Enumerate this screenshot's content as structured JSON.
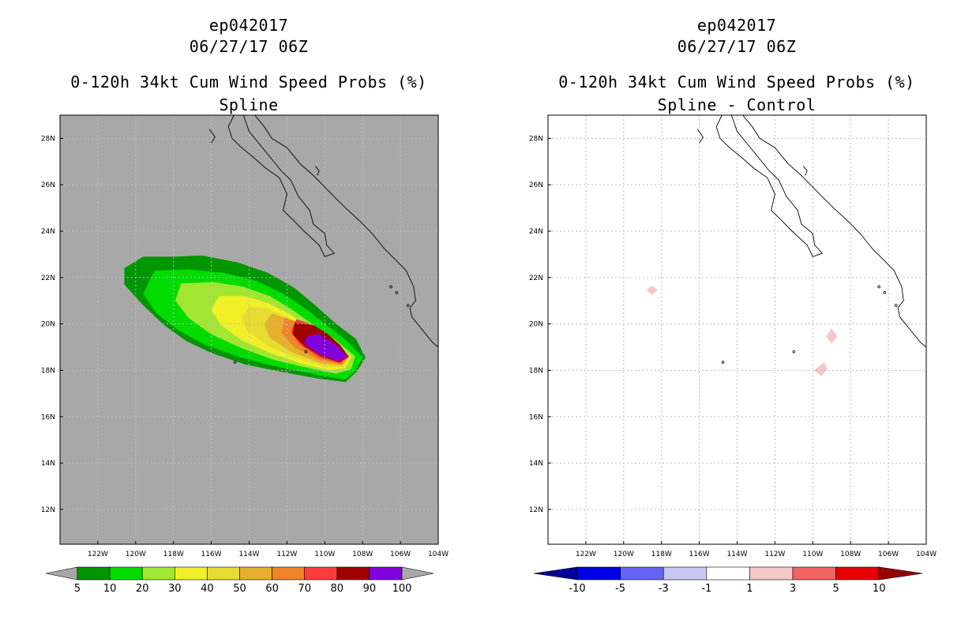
{
  "chart_data": [
    {
      "type": "heatmap",
      "storm_id": "ep042017",
      "datetime": "06/27/17 06Z",
      "title": "0-120h 34kt Cum Wind Speed Probs (%)",
      "subtitle": "Spline",
      "background_color": "#a8a8a8",
      "xlim": [
        -124,
        -104
      ],
      "ylim": [
        10.5,
        29
      ],
      "x_ticks": [
        -122,
        -120,
        -118,
        -116,
        -114,
        -112,
        -110,
        -108,
        -106,
        -104
      ],
      "x_tick_labels": [
        "122W",
        "120W",
        "118W",
        "116W",
        "114W",
        "112W",
        "110W",
        "108W",
        "106W",
        "104W"
      ],
      "y_ticks": [
        12,
        14,
        16,
        18,
        20,
        22,
        24,
        26,
        28
      ],
      "y_tick_labels": [
        "12N",
        "14N",
        "16N",
        "18N",
        "20N",
        "22N",
        "24N",
        "26N",
        "28N"
      ],
      "grid": true,
      "colorbar": {
        "labels": [
          "5",
          "10",
          "20",
          "30",
          "40",
          "50",
          "60",
          "70",
          "80",
          "90",
          "100"
        ],
        "colors": [
          "#009600",
          "#00dc00",
          "#a0e632",
          "#f0f028",
          "#e6dc32",
          "#e6af2d",
          "#f08228",
          "#fa3c3c",
          "#a00000",
          "#8200dc"
        ],
        "extend_colors": [
          "#a8a8a8",
          "#a8a8a8"
        ]
      },
      "contours": [
        {
          "level": 5,
          "color": "#009600",
          "points": [
            [
              -119.6,
              22.9
            ],
            [
              -117.9,
              22.9
            ],
            [
              -116.5,
              22.95
            ],
            [
              -114.6,
              22.65
            ],
            [
              -113.0,
              22.2
            ],
            [
              -111.6,
              21.55
            ],
            [
              -110.5,
              20.8
            ],
            [
              -109.4,
              20.0
            ],
            [
              -108.35,
              19.35
            ],
            [
              -107.85,
              18.55
            ],
            [
              -108.3,
              17.95
            ],
            [
              -108.9,
              17.5
            ],
            [
              -110.4,
              17.65
            ],
            [
              -112.4,
              17.95
            ],
            [
              -114.2,
              18.25
            ],
            [
              -116.0,
              18.75
            ],
            [
              -117.3,
              19.25
            ],
            [
              -118.5,
              19.95
            ],
            [
              -119.6,
              20.8
            ],
            [
              -120.6,
              21.7
            ],
            [
              -120.6,
              22.4
            ]
          ]
        },
        {
          "level": 10,
          "color": "#00dc00",
          "points": [
            [
              -119.0,
              22.3
            ],
            [
              -117.2,
              22.35
            ],
            [
              -115.3,
              22.2
            ],
            [
              -113.6,
              21.85
            ],
            [
              -112.2,
              21.3
            ],
            [
              -111.0,
              20.65
            ],
            [
              -109.9,
              19.95
            ],
            [
              -108.8,
              19.25
            ],
            [
              -108.0,
              18.55
            ],
            [
              -108.4,
              17.95
            ],
            [
              -108.9,
              17.6
            ],
            [
              -110.4,
              17.8
            ],
            [
              -112.5,
              18.15
            ],
            [
              -114.4,
              18.55
            ],
            [
              -116.3,
              19.1
            ],
            [
              -117.7,
              19.7
            ],
            [
              -118.9,
              20.45
            ],
            [
              -119.6,
              21.3
            ]
          ]
        },
        {
          "level": 20,
          "color": "#a0e632",
          "points": [
            [
              -117.6,
              21.75
            ],
            [
              -115.8,
              21.8
            ],
            [
              -114.3,
              21.6
            ],
            [
              -112.9,
              21.2
            ],
            [
              -111.7,
              20.6
            ],
            [
              -110.6,
              19.95
            ],
            [
              -109.4,
              19.3
            ],
            [
              -108.4,
              18.6
            ],
            [
              -108.6,
              18.05
            ],
            [
              -109.4,
              17.85
            ],
            [
              -110.9,
              18.1
            ],
            [
              -112.7,
              18.45
            ],
            [
              -114.4,
              18.95
            ],
            [
              -116.0,
              19.55
            ],
            [
              -117.2,
              20.25
            ],
            [
              -117.9,
              21.0
            ]
          ]
        },
        {
          "level": 30,
          "color": "#f0f028",
          "points": [
            [
              -115.6,
              21.2
            ],
            [
              -114.2,
              21.2
            ],
            [
              -113.0,
              20.9
            ],
            [
              -111.9,
              20.45
            ],
            [
              -110.9,
              19.9
            ],
            [
              -109.7,
              19.25
            ],
            [
              -108.6,
              18.6
            ],
            [
              -108.9,
              18.1
            ],
            [
              -109.8,
              18.0
            ],
            [
              -111.3,
              18.3
            ],
            [
              -112.9,
              18.75
            ],
            [
              -114.4,
              19.3
            ],
            [
              -115.5,
              19.95
            ],
            [
              -116.0,
              20.6
            ]
          ]
        },
        {
          "level": 40,
          "color": "#e6dc32",
          "points": [
            [
              -114.0,
              20.75
            ],
            [
              -113.0,
              20.65
            ],
            [
              -112.0,
              20.3
            ],
            [
              -111.0,
              19.8
            ],
            [
              -109.9,
              19.2
            ],
            [
              -108.7,
              18.6
            ],
            [
              -109.0,
              18.15
            ],
            [
              -110.0,
              18.15
            ],
            [
              -111.6,
              18.55
            ],
            [
              -113.1,
              19.1
            ],
            [
              -114.1,
              19.7
            ],
            [
              -114.4,
              20.25
            ]
          ]
        },
        {
          "level": 50,
          "color": "#e6af2d",
          "points": [
            [
              -112.8,
              20.45
            ],
            [
              -111.9,
              20.2
            ],
            [
              -110.9,
              19.7
            ],
            [
              -109.9,
              19.15
            ],
            [
              -108.7,
              18.6
            ],
            [
              -109.1,
              18.2
            ],
            [
              -110.2,
              18.3
            ],
            [
              -111.8,
              18.8
            ],
            [
              -112.9,
              19.4
            ],
            [
              -113.2,
              20.0
            ]
          ]
        },
        {
          "level": 60,
          "color": "#f08228",
          "points": [
            [
              -112.1,
              20.25
            ],
            [
              -111.3,
              20.05
            ],
            [
              -110.5,
              19.65
            ],
            [
              -109.6,
              19.1
            ],
            [
              -108.7,
              18.6
            ],
            [
              -109.1,
              18.25
            ],
            [
              -110.3,
              18.45
            ],
            [
              -111.6,
              19.0
            ],
            [
              -112.3,
              19.6
            ]
          ]
        },
        {
          "level": 70,
          "color": "#fa3c3c",
          "points": [
            [
              -111.5,
              20.2
            ],
            [
              -110.9,
              20.05
            ],
            [
              -110.2,
              19.65
            ],
            [
              -109.4,
              19.1
            ],
            [
              -108.7,
              18.6
            ],
            [
              -109.2,
              18.3
            ],
            [
              -110.3,
              18.55
            ],
            [
              -111.3,
              19.1
            ],
            [
              -111.8,
              19.65
            ]
          ]
        },
        {
          "level": 80,
          "color": "#a00000",
          "points": [
            [
              -111.6,
              20.05
            ],
            [
              -110.6,
              19.95
            ],
            [
              -109.9,
              19.6
            ],
            [
              -109.2,
              19.1
            ],
            [
              -108.75,
              18.6
            ],
            [
              -109.2,
              18.35
            ],
            [
              -110.2,
              18.6
            ],
            [
              -111.1,
              19.05
            ],
            [
              -111.7,
              19.55
            ]
          ]
        },
        {
          "level": 90,
          "color": "#8200dc",
          "points": [
            [
              -110.9,
              19.5
            ],
            [
              -110.3,
              19.55
            ],
            [
              -109.9,
              19.35
            ],
            [
              -109.4,
              19.1
            ],
            [
              -108.8,
              18.6
            ],
            [
              -109.3,
              18.4
            ],
            [
              -110.3,
              18.7
            ],
            [
              -111.1,
              19.15
            ]
          ]
        }
      ]
    },
    {
      "type": "heatmap",
      "storm_id": "ep042017",
      "datetime": "06/27/17 06Z",
      "title": "0-120h 34kt Cum Wind Speed Probs (%)",
      "subtitle": "Spline - Control",
      "background_color": "#ffffff",
      "xlim": [
        -124,
        -104
      ],
      "ylim": [
        10.5,
        29
      ],
      "x_ticks": [
        -122,
        -120,
        -118,
        -116,
        -114,
        -112,
        -110,
        -108,
        -106,
        -104
      ],
      "x_tick_labels": [
        "122W",
        "120W",
        "118W",
        "116W",
        "114W",
        "112W",
        "110W",
        "108W",
        "106W",
        "104W"
      ],
      "y_ticks": [
        12,
        14,
        16,
        18,
        20,
        22,
        24,
        26,
        28
      ],
      "y_tick_labels": [
        "12N",
        "14N",
        "16N",
        "18N",
        "20N",
        "22N",
        "24N",
        "26N",
        "28N"
      ],
      "grid": true,
      "colorbar": {
        "labels": [
          "-10",
          "-5",
          "-3",
          "-1",
          "1",
          "3",
          "5",
          "10"
        ],
        "colors": [
          "#0000e6",
          "#6464f0",
          "#c8c8f5",
          "#ffffff",
          "#f5c8c8",
          "#f06464",
          "#e60000"
        ],
        "extend_colors": [
          "#000096",
          "#960000"
        ]
      },
      "contours": [
        {
          "level": 1,
          "color": "#f5c8c8",
          "points": [
            [
              -118.5,
              21.65
            ],
            [
              -118.2,
              21.45
            ],
            [
              -118.5,
              21.25
            ],
            [
              -118.8,
              21.45
            ]
          ]
        },
        {
          "level": 1,
          "color": "#f5c8c8",
          "points": [
            [
              -109.0,
              19.8
            ],
            [
              -108.7,
              19.45
            ],
            [
              -109.0,
              19.15
            ],
            [
              -109.3,
              19.45
            ]
          ]
        },
        {
          "level": 1,
          "color": "#f5c8c8",
          "points": [
            [
              -109.4,
              18.35
            ],
            [
              -109.2,
              18.05
            ],
            [
              -109.55,
              17.75
            ],
            [
              -109.95,
              18.0
            ]
          ]
        }
      ]
    }
  ],
  "coastline": [
    [
      [
        -114.3,
        29
      ],
      [
        -114.0,
        28.3
      ],
      [
        -113.2,
        27.5
      ],
      [
        -112.3,
        26.6
      ],
      [
        -111.8,
        26.2
      ],
      [
        -111.4,
        25.5
      ],
      [
        -110.8,
        24.9
      ],
      [
        -110.6,
        24.3
      ],
      [
        -110.0,
        23.9
      ],
      [
        -109.9,
        23.4
      ],
      [
        -109.5,
        23.05
      ],
      [
        -110.0,
        22.9
      ],
      [
        -110.3,
        23.4
      ],
      [
        -111.1,
        24.0
      ],
      [
        -111.7,
        24.5
      ],
      [
        -112.2,
        24.9
      ],
      [
        -112.0,
        25.6
      ],
      [
        -112.4,
        26.3
      ],
      [
        -113.1,
        26.7
      ],
      [
        -113.8,
        27.2
      ],
      [
        -114.4,
        27.6
      ],
      [
        -114.9,
        28.0
      ],
      [
        -115.1,
        28.5
      ],
      [
        -114.8,
        29
      ]
    ],
    [
      [
        -113.7,
        29
      ],
      [
        -113.2,
        28.5
      ],
      [
        -112.8,
        28.0
      ],
      [
        -112.0,
        27.6
      ],
      [
        -111.3,
        26.9
      ],
      [
        -110.6,
        26.4
      ],
      [
        -110.0,
        25.9
      ],
      [
        -109.4,
        25.4
      ],
      [
        -108.9,
        25.0
      ],
      [
        -108.1,
        24.4
      ],
      [
        -107.5,
        23.9
      ],
      [
        -106.8,
        23.2
      ],
      [
        -106.3,
        22.8
      ],
      [
        -105.7,
        22.3
      ],
      [
        -105.3,
        21.6
      ],
      [
        -105.2,
        21.0
      ],
      [
        -105.5,
        20.7
      ],
      [
        -105.4,
        20.3
      ],
      [
        -104.9,
        19.8
      ],
      [
        -104.3,
        19.2
      ],
      [
        -104,
        19.0
      ]
    ],
    [
      [
        -116.1,
        28.4
      ],
      [
        -115.8,
        28.05
      ],
      [
        -116.0,
        27.8
      ]
    ],
    [
      [
        -110.5,
        26.8
      ],
      [
        -110.3,
        26.6
      ],
      [
        -110.4,
        26.4
      ]
    ]
  ],
  "islands": [
    [
      -111.0,
      18.8
    ],
    [
      -114.75,
      18.35
    ],
    [
      -106.5,
      21.6
    ],
    [
      -106.2,
      21.35
    ],
    [
      -105.6,
      20.8
    ]
  ],
  "points_of_interest": []
}
